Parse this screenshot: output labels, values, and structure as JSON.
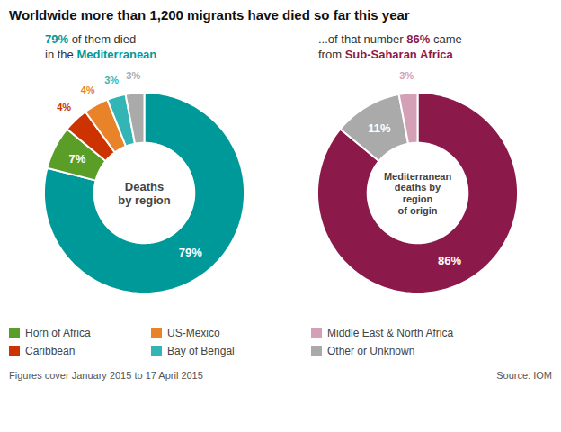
{
  "title": "Worldwide more than 1,200 migrants have died so far this year",
  "chart_data": [
    {
      "type": "donut",
      "categories": [
        "Mediterranean",
        "Horn of Africa",
        "Caribbean",
        "US-Mexico",
        "Bay of Bengal",
        "Other or Unknown"
      ],
      "values": [
        79,
        7,
        4,
        4,
        3,
        3
      ],
      "value_labels": [
        "79%",
        "7%",
        "4%",
        "4%",
        "3%",
        "3%"
      ],
      "colors": [
        "#009999",
        "#5a9e28",
        "#cc3300",
        "#e8832a",
        "#33b5b5",
        "#aaaaaa"
      ],
      "data_labels": true,
      "subtitle": [
        "79% of them died",
        "in the Mediterranean"
      ],
      "center_text": [
        "Deaths",
        "by region"
      ]
    },
    {
      "type": "donut",
      "categories": [
        "Sub-Saharan Africa",
        "Other or Unknown",
        "Middle East & North Africa"
      ],
      "values": [
        86,
        11,
        3
      ],
      "value_labels": [
        "86%",
        "11%",
        "3%"
      ],
      "colors": [
        "#8b1a4a",
        "#aaaaaa",
        "#d4a0b5"
      ],
      "data_labels": true,
      "subtitle": [
        "...of that number 86% came",
        "from Sub-Saharan Africa"
      ],
      "center_text": [
        "Mediterranean",
        "deaths by",
        "region",
        "of origin"
      ]
    }
  ],
  "legend_entries": [
    {
      "name": "Horn of Africa",
      "color": "#5a9e28"
    },
    {
      "name": "US-Mexico",
      "color": "#e8832a"
    },
    {
      "name": "Middle East & North Africa",
      "color": "#d4a0b5"
    },
    {
      "name": "Caribbean",
      "color": "#cc3300"
    },
    {
      "name": "Bay of Bengal",
      "color": "#33b5b5"
    },
    {
      "name": "Other or Unknown",
      "color": "#aaaaaa"
    }
  ],
  "caption": "Figures cover January 2015 to 17 April 2015",
  "source": "Source: IOM"
}
